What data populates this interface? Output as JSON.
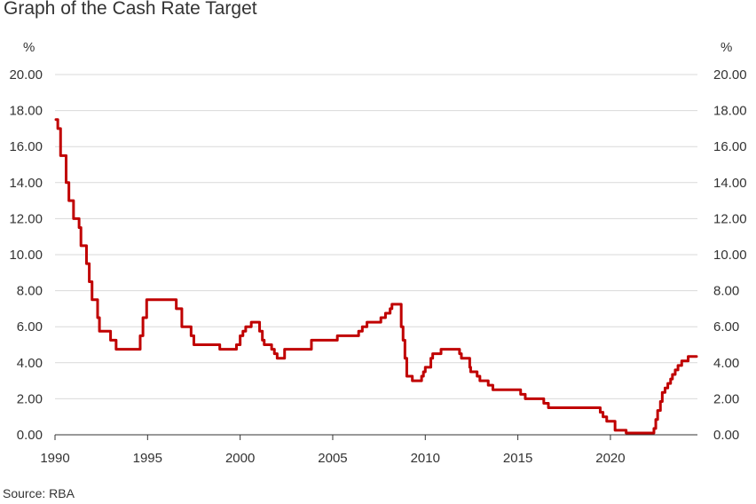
{
  "title": "Graph of the Cash Rate Target",
  "source": "Source: RBA",
  "chart_data": {
    "type": "line",
    "title": "Graph of the Cash Rate Target",
    "unit_left": "%",
    "unit_right": "%",
    "xlim": [
      1990,
      2024.7
    ],
    "ylim": [
      0,
      20
    ],
    "x_ticks": [
      1990,
      1995,
      2000,
      2005,
      2010,
      2015,
      2020
    ],
    "x_tick_labels": [
      "1990",
      "1995",
      "2000",
      "2005",
      "2010",
      "2015",
      "2020"
    ],
    "y_ticks": [
      0,
      2,
      4,
      6,
      8,
      10,
      12,
      14,
      16,
      18,
      20
    ],
    "y_tick_labels": [
      "0.00",
      "2.00",
      "4.00",
      "6.00",
      "8.00",
      "10.00",
      "12.00",
      "14.00",
      "16.00",
      "18.00",
      "20.00"
    ],
    "grid": true,
    "line_color": "#c00000",
    "series": [
      {
        "step": true,
        "points": [
          [
            1990.05,
            17.5
          ],
          [
            1990.15,
            17.0
          ],
          [
            1990.3,
            15.5
          ],
          [
            1990.6,
            14.0
          ],
          [
            1990.75,
            13.0
          ],
          [
            1991.0,
            12.0
          ],
          [
            1991.3,
            11.5
          ],
          [
            1991.4,
            10.5
          ],
          [
            1991.7,
            9.5
          ],
          [
            1991.85,
            8.5
          ],
          [
            1992.0,
            7.5
          ],
          [
            1992.3,
            6.5
          ],
          [
            1992.4,
            5.75
          ],
          [
            1993.0,
            5.25
          ],
          [
            1993.3,
            4.75
          ],
          [
            1994.6,
            5.5
          ],
          [
            1994.75,
            6.5
          ],
          [
            1994.95,
            7.5
          ],
          [
            1996.55,
            7.0
          ],
          [
            1996.85,
            6.0
          ],
          [
            1997.35,
            5.5
          ],
          [
            1997.5,
            5.0
          ],
          [
            1998.9,
            4.75
          ],
          [
            1999.8,
            5.0
          ],
          [
            2000.0,
            5.5
          ],
          [
            2000.15,
            5.75
          ],
          [
            2000.3,
            6.0
          ],
          [
            2000.6,
            6.25
          ],
          [
            2001.05,
            5.75
          ],
          [
            2001.2,
            5.25
          ],
          [
            2001.3,
            5.0
          ],
          [
            2001.7,
            4.75
          ],
          [
            2001.85,
            4.5
          ],
          [
            2002.0,
            4.25
          ],
          [
            2002.4,
            4.75
          ],
          [
            2003.85,
            5.25
          ],
          [
            2005.25,
            5.5
          ],
          [
            2006.4,
            5.75
          ],
          [
            2006.6,
            6.0
          ],
          [
            2006.85,
            6.25
          ],
          [
            2007.6,
            6.5
          ],
          [
            2007.85,
            6.75
          ],
          [
            2008.1,
            7.0
          ],
          [
            2008.2,
            7.25
          ],
          [
            2008.7,
            6.0
          ],
          [
            2008.8,
            5.25
          ],
          [
            2008.9,
            4.25
          ],
          [
            2009.0,
            3.25
          ],
          [
            2009.1,
            3.25
          ],
          [
            2009.3,
            3.0
          ],
          [
            2009.8,
            3.25
          ],
          [
            2009.9,
            3.5
          ],
          [
            2010.0,
            3.75
          ],
          [
            2010.3,
            4.25
          ],
          [
            2010.4,
            4.5
          ],
          [
            2010.85,
            4.75
          ],
          [
            2011.85,
            4.5
          ],
          [
            2011.95,
            4.25
          ],
          [
            2012.4,
            3.75
          ],
          [
            2012.45,
            3.5
          ],
          [
            2012.8,
            3.25
          ],
          [
            2012.95,
            3.0
          ],
          [
            2013.4,
            2.75
          ],
          [
            2013.65,
            2.5
          ],
          [
            2015.15,
            2.25
          ],
          [
            2015.4,
            2.0
          ],
          [
            2016.4,
            1.75
          ],
          [
            2016.65,
            1.5
          ],
          [
            2019.45,
            1.25
          ],
          [
            2019.6,
            1.0
          ],
          [
            2019.8,
            0.75
          ],
          [
            2020.25,
            0.25
          ],
          [
            2020.85,
            0.1
          ],
          [
            2022.35,
            0.35
          ],
          [
            2022.45,
            0.85
          ],
          [
            2022.55,
            1.35
          ],
          [
            2022.7,
            1.85
          ],
          [
            2022.8,
            2.35
          ],
          [
            2022.95,
            2.6
          ],
          [
            2023.1,
            2.85
          ],
          [
            2023.25,
            3.1
          ],
          [
            2023.35,
            3.35
          ],
          [
            2023.5,
            3.6
          ],
          [
            2023.65,
            3.85
          ],
          [
            2023.85,
            4.1
          ],
          [
            2024.2,
            4.35
          ],
          [
            2024.65,
            4.35
          ]
        ]
      }
    ]
  }
}
